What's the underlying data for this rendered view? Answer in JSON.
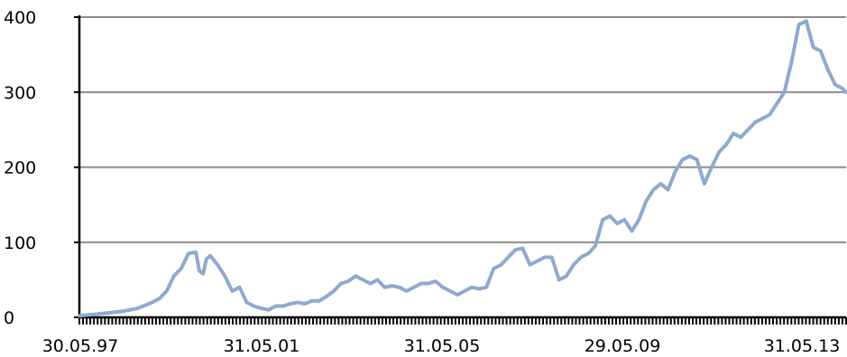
{
  "chart_data": {
    "type": "line",
    "title": "",
    "xlabel": "",
    "ylabel": "",
    "x_tick_labels": [
      "30.05.97",
      "31.05.01",
      "31.05.05",
      "29.05.09",
      "31.05.13"
    ],
    "y_tick_labels": [
      "0",
      "100",
      "200",
      "300",
      "400"
    ],
    "ylim": [
      0,
      400
    ],
    "y_ticks": [
      0,
      100,
      200,
      300,
      400
    ],
    "xlim": [
      "1997-05-30",
      "2014-12-31"
    ],
    "grid": "horizontal",
    "legend": "none",
    "line_color": "#8eaacf",
    "series": [
      {
        "x": [
          "1997-05-30",
          "1997-09-30",
          "1998-01-31",
          "1998-05-31",
          "1998-09-30",
          "1999-01-31",
          "1999-03-31",
          "1999-05-31",
          "1999-07-31",
          "1999-09-30",
          "1999-11-30",
          "2000-01-31",
          "2000-02-29",
          "2000-03-31",
          "2000-04-30",
          "2000-05-31",
          "2000-07-31",
          "2000-09-30",
          "2000-11-30",
          "2001-01-31",
          "2001-03-31",
          "2001-05-31",
          "2001-07-31",
          "2001-09-30",
          "2001-11-30",
          "2002-01-31",
          "2002-03-31",
          "2002-05-31",
          "2002-07-31",
          "2002-09-30",
          "2002-11-30",
          "2003-01-31",
          "2003-03-31",
          "2003-05-31",
          "2003-07-31",
          "2003-09-30",
          "2003-11-30",
          "2004-01-31",
          "2004-03-31",
          "2004-05-31",
          "2004-07-31",
          "2004-09-30",
          "2004-11-30",
          "2005-01-31",
          "2005-03-31",
          "2005-05-31",
          "2005-07-31",
          "2005-09-30",
          "2005-11-30",
          "2006-01-31",
          "2006-03-31",
          "2006-05-31",
          "2006-07-31",
          "2006-09-30",
          "2006-11-30",
          "2007-01-31",
          "2007-03-31",
          "2007-05-31",
          "2007-07-31",
          "2007-09-30",
          "2007-11-30",
          "2008-01-31",
          "2008-03-31",
          "2008-05-31",
          "2008-07-31",
          "2008-09-30",
          "2008-11-30",
          "2009-01-31",
          "2009-03-31",
          "2009-05-31",
          "2009-07-31",
          "2009-09-30",
          "2009-11-30",
          "2010-01-31",
          "2010-03-31",
          "2010-05-31",
          "2010-07-31",
          "2010-09-30",
          "2010-11-30",
          "2011-01-31",
          "2011-03-31",
          "2011-05-31",
          "2011-07-31",
          "2011-09-30",
          "2011-11-30",
          "2012-01-31",
          "2012-03-31",
          "2012-05-31",
          "2012-07-31",
          "2012-09-30",
          "2012-11-30",
          "2013-01-31",
          "2013-03-31",
          "2013-05-31",
          "2013-07-31",
          "2013-09-30",
          "2013-11-30",
          "2014-01-31",
          "2014-03-31",
          "2014-05-31",
          "2014-07-31",
          "2014-09-30",
          "2014-11-30",
          "2014-12-31"
        ],
        "values": [
          2,
          4,
          6,
          8,
          12,
          20,
          25,
          35,
          55,
          65,
          85,
          87,
          62,
          58,
          78,
          82,
          70,
          55,
          35,
          40,
          20,
          15,
          12,
          10,
          15,
          15,
          18,
          20,
          18,
          22,
          22,
          28,
          35,
          45,
          48,
          55,
          50,
          45,
          50,
          40,
          42,
          40,
          35,
          40,
          45,
          45,
          48,
          40,
          35,
          30,
          35,
          40,
          38,
          40,
          65,
          70,
          80,
          90,
          92,
          70,
          75,
          80,
          80,
          50,
          55,
          70,
          80,
          85,
          95,
          130,
          135,
          125,
          130,
          115,
          130,
          155,
          170,
          178,
          170,
          195,
          210,
          215,
          210,
          178,
          200,
          220,
          230,
          245,
          240,
          250,
          260,
          265,
          270,
          285,
          300,
          340,
          390,
          395,
          360,
          355,
          330,
          310,
          305,
          300
        ]
      }
    ]
  }
}
